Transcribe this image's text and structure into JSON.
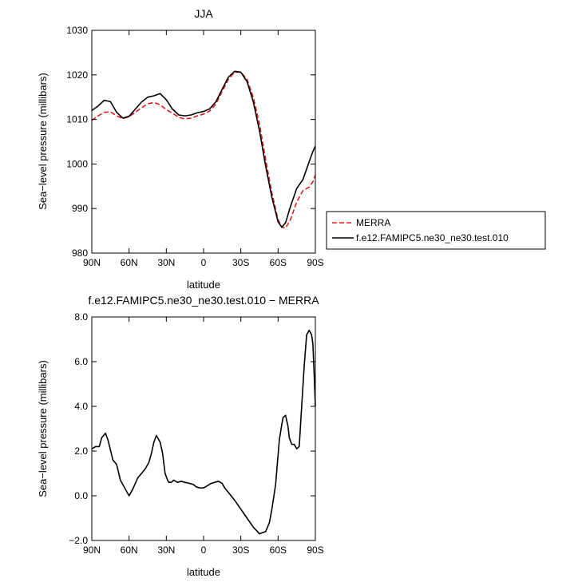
{
  "chart_data": [
    {
      "type": "line",
      "title": "JJA",
      "xlabel": "latitude",
      "ylabel": "Sea−level pressure (millibars)",
      "xlim": [
        90,
        -90
      ],
      "ylim": [
        980,
        1030
      ],
      "x_ticks": [
        90,
        60,
        30,
        0,
        -30,
        -60,
        -90
      ],
      "x_tick_labels": [
        "90N",
        "60N",
        "30N",
        "0",
        "30S",
        "60S",
        "90S"
      ],
      "y_ticks": [
        980,
        990,
        1000,
        1010,
        1020,
        1030
      ],
      "y_tick_labels": [
        "980",
        "990",
        "1000",
        "1010",
        "1020",
        "1030"
      ],
      "legend": "outside-right",
      "series": [
        {
          "name": "MERRA",
          "color": "#e41a1c",
          "dash": "dashed",
          "x": [
            90,
            85,
            80,
            75,
            70,
            65,
            60,
            55,
            50,
            45,
            40,
            35,
            30,
            25,
            20,
            15,
            10,
            5,
            0,
            -5,
            -10,
            -15,
            -20,
            -25,
            -30,
            -35,
            -40,
            -45,
            -50,
            -55,
            -60,
            -63,
            -66,
            -70,
            -75,
            -80,
            -85,
            -88,
            -90
          ],
          "y": [
            1009.8,
            1010.8,
            1011.6,
            1011.7,
            1010.8,
            1010.2,
            1010.6,
            1011.6,
            1012.6,
            1013.5,
            1013.8,
            1013.3,
            1012.2,
            1011.4,
            1010.5,
            1010.1,
            1010.3,
            1010.8,
            1011.2,
            1011.9,
            1013.5,
            1016.3,
            1019.0,
            1020.6,
            1020.6,
            1019.0,
            1015.0,
            1009.0,
            1001.0,
            993.5,
            987.5,
            985.8,
            985.6,
            987.5,
            991.5,
            994.0,
            994.8,
            996.0,
            997.5
          ]
        },
        {
          "name": "f.e12.FAMIPC5.ne30_ne30.test.010",
          "color": "#000000",
          "dash": "solid",
          "x": [
            90,
            85,
            80,
            75,
            70,
            65,
            60,
            55,
            50,
            45,
            40,
            35,
            30,
            25,
            20,
            15,
            10,
            5,
            0,
            -5,
            -10,
            -15,
            -20,
            -25,
            -30,
            -35,
            -40,
            -45,
            -50,
            -55,
            -60,
            -63,
            -66,
            -70,
            -75,
            -80,
            -85,
            -88,
            -90
          ],
          "y": [
            1012.0,
            1013.0,
            1014.3,
            1014.0,
            1011.6,
            1010.3,
            1010.7,
            1012.3,
            1013.9,
            1015.0,
            1015.3,
            1015.8,
            1014.4,
            1012.3,
            1011.0,
            1010.8,
            1011.0,
            1011.5,
            1011.8,
            1012.4,
            1014.0,
            1016.8,
            1019.5,
            1020.8,
            1020.6,
            1018.5,
            1014.0,
            1007.5,
            999.5,
            992.5,
            987.0,
            985.8,
            986.8,
            990.5,
            994.5,
            996.5,
            1000.5,
            1002.8,
            1004.0
          ]
        }
      ]
    },
    {
      "type": "line",
      "title": "f.e12.FAMIPC5.ne30_ne30.test.010 − MERRA",
      "xlabel": "latitude",
      "ylabel": "Sea−level pressure (millibars)",
      "xlim": [
        90,
        -90
      ],
      "ylim": [
        -2.0,
        8.0
      ],
      "x_ticks": [
        90,
        60,
        30,
        0,
        -30,
        -60,
        -90
      ],
      "x_tick_labels": [
        "90N",
        "60N",
        "30N",
        "0",
        "30S",
        "60S",
        "90S"
      ],
      "y_ticks": [
        -2,
        0,
        2,
        4,
        6,
        8
      ],
      "y_tick_labels": [
        "−2.0",
        "0.0",
        "2.0",
        "4.0",
        "6.0",
        "8.0"
      ],
      "series": [
        {
          "name": "",
          "color": "#000000",
          "dash": "solid",
          "x": [
            90,
            87,
            84,
            82,
            79,
            77,
            73,
            70,
            67,
            63,
            60,
            57,
            53,
            50,
            47,
            44,
            42,
            40,
            38,
            36,
            35,
            33,
            31,
            29,
            28,
            26,
            24,
            21,
            18,
            15,
            11,
            8,
            6,
            3,
            0,
            -3,
            -6,
            -9,
            -12,
            -15,
            -17,
            -20,
            -25,
            -30,
            -35,
            -40,
            -45,
            -50,
            -53,
            -55,
            -58,
            -61,
            -63,
            -64,
            -66,
            -68,
            -69,
            -71,
            -73,
            -75,
            -77,
            -79,
            -81,
            -83,
            -85,
            -87,
            -88,
            -89,
            -90
          ],
          "y": [
            2.1,
            2.2,
            2.2,
            2.6,
            2.8,
            2.5,
            1.6,
            1.4,
            0.7,
            0.3,
            0.0,
            0.3,
            0.8,
            1.0,
            1.2,
            1.5,
            1.9,
            2.4,
            2.7,
            2.5,
            2.4,
            1.9,
            1.0,
            0.7,
            0.6,
            0.6,
            0.7,
            0.6,
            0.65,
            0.6,
            0.55,
            0.5,
            0.4,
            0.35,
            0.35,
            0.45,
            0.55,
            0.6,
            0.65,
            0.55,
            0.35,
            0.15,
            -0.2,
            -0.6,
            -1.0,
            -1.4,
            -1.7,
            -1.6,
            -1.2,
            -0.6,
            0.5,
            2.5,
            3.2,
            3.5,
            3.6,
            3.1,
            2.6,
            2.3,
            2.3,
            2.1,
            2.2,
            4.0,
            5.8,
            7.2,
            7.4,
            7.2,
            6.8,
            5.5,
            4.0
          ]
        }
      ]
    }
  ]
}
